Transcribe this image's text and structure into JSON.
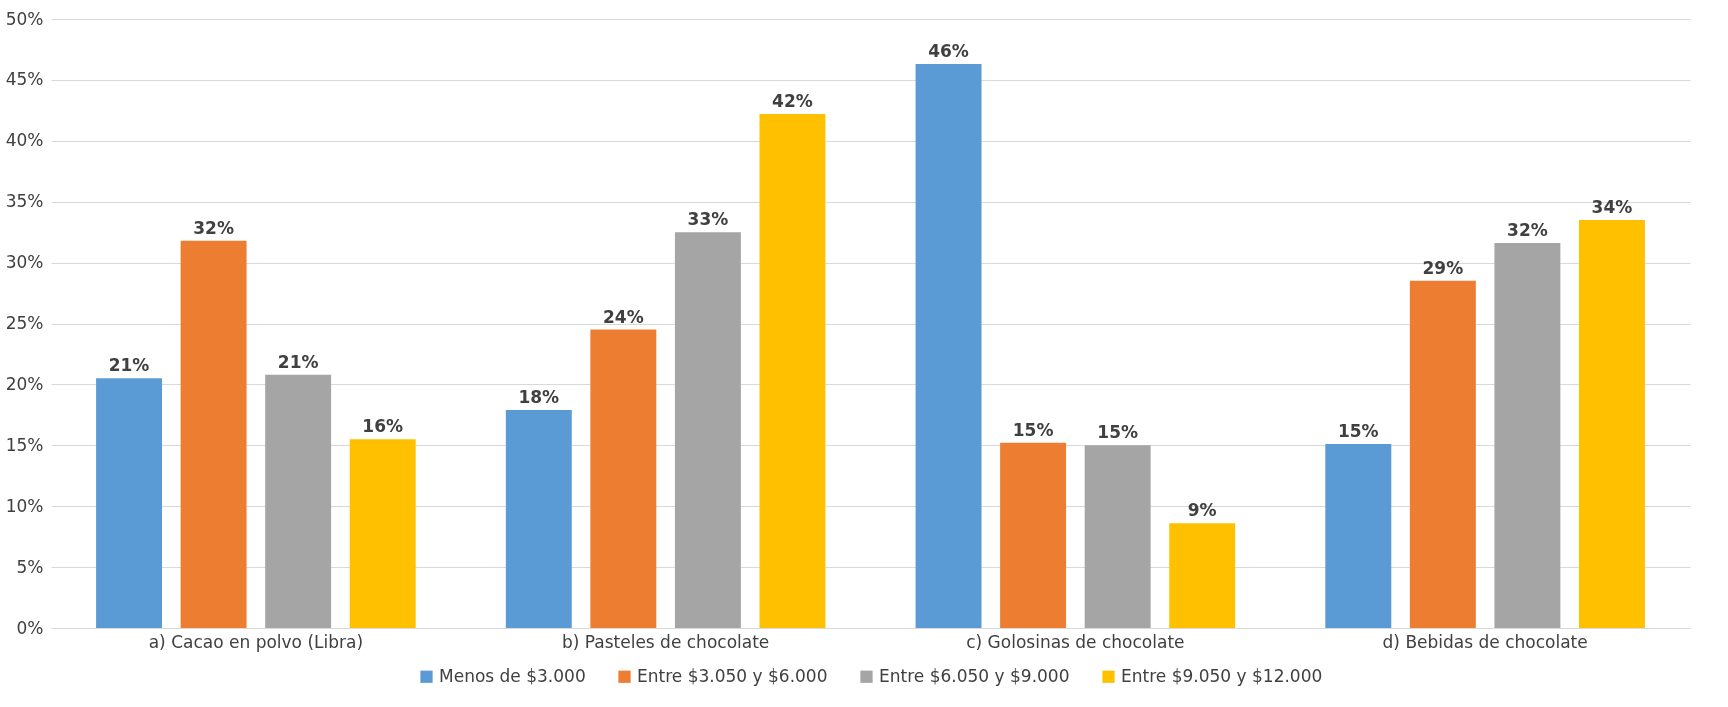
{
  "chart_data": {
    "type": "bar",
    "categories": [
      "a) Cacao en polvo (Libra)",
      "b) Pasteles de chocolate",
      "c) Golosinas de chocolate",
      "d) Bebidas de chocolate"
    ],
    "series": [
      {
        "name": "Menos de $3.000",
        "color": "#5b9bd5",
        "values": [
          20.5,
          17.9,
          46.3,
          15.1
        ],
        "value_labels": [
          "21%",
          "18%",
          "46%",
          "15%"
        ]
      },
      {
        "name": "Entre $3.050 y $6.000",
        "color": "#ed7d31",
        "values": [
          31.8,
          24.5,
          15.2,
          28.5
        ],
        "value_labels": [
          "32%",
          "24%",
          "15%",
          "29%"
        ]
      },
      {
        "name": "Entre $6.050 y $9.000",
        "color": "#a5a5a5",
        "values": [
          20.8,
          32.5,
          15.0,
          31.6
        ],
        "value_labels": [
          "21%",
          "33%",
          "15%",
          "32%"
        ]
      },
      {
        "name": "Entre $9.050 y $12.000",
        "color": "#ffc000",
        "values": [
          15.5,
          42.2,
          8.6,
          33.5
        ],
        "value_labels": [
          "16%",
          "42%",
          "9%",
          "34%"
        ]
      }
    ],
    "ylim": [
      0,
      50
    ],
    "yticks": [
      {
        "value": 0,
        "label": "0%"
      },
      {
        "value": 5,
        "label": "5%"
      },
      {
        "value": 10,
        "label": "10%"
      },
      {
        "value": 15,
        "label": "15%"
      },
      {
        "value": 20,
        "label": "20%"
      },
      {
        "value": 25,
        "label": "25%"
      },
      {
        "value": 30,
        "label": "30%"
      },
      {
        "value": 35,
        "label": "35%"
      },
      {
        "value": 40,
        "label": "40%"
      },
      {
        "value": 45,
        "label": "45%"
      },
      {
        "value": 50,
        "label": "50%"
      }
    ],
    "grid": "y",
    "legend": "bottom"
  }
}
